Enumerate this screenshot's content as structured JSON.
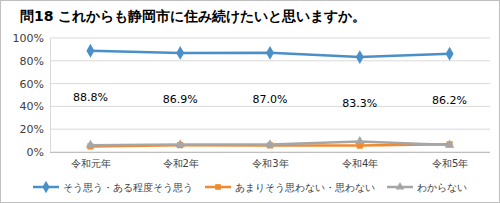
{
  "chart_data": {
    "type": "line",
    "title": "問18 これからも静岡市に住み続けたいと思いますか。",
    "categories": [
      "令和元年",
      "令和2年",
      "令和3年",
      "令和4年",
      "令和5年"
    ],
    "series": [
      {
        "name": "そう思う・ある程度そう思う",
        "color": "#4a90c8",
        "marker": "diamond",
        "values": [
          88.8,
          86.9,
          87.0,
          83.3,
          86.2
        ],
        "data_labels": true,
        "value_labels": [
          "88.8%",
          "86.9%",
          "87.0%",
          "83.3%",
          "86.2%"
        ]
      },
      {
        "name": "あまりそう思わない・思わない",
        "color": "#f08a2c",
        "marker": "square",
        "values": [
          4.9,
          6.0,
          5.8,
          5.6,
          6.7
        ]
      },
      {
        "name": "わからない",
        "color": "#a6a6a6",
        "marker": "triangle",
        "values": [
          6.0,
          6.5,
          6.5,
          9.3,
          6.2
        ]
      }
    ],
    "ylim": [
      0,
      100
    ],
    "yticks": [
      {
        "value": 0,
        "label": "0%"
      },
      {
        "value": 20,
        "label": "20%"
      },
      {
        "value": 40,
        "label": "40%"
      },
      {
        "value": 60,
        "label": "60%"
      },
      {
        "value": 80,
        "label": "80%"
      },
      {
        "value": 100,
        "label": "100%"
      }
    ],
    "grid": true,
    "legend": "bottom"
  }
}
